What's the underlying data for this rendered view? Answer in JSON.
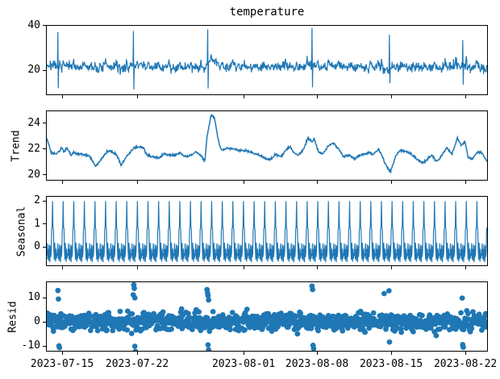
{
  "figure": {
    "background": "#ffffff",
    "line_color": "#1f77b4",
    "axis_color": "#000000",
    "text_color": "#000000"
  },
  "chart_data": {
    "type": "line",
    "title": "temperature",
    "subtitle": "",
    "legend": null,
    "grid": false,
    "x_axis": {
      "total_days": 41.5,
      "ticks": [
        {
          "day": 1.52,
          "label": "2023-07-15"
        },
        {
          "day": 8.56,
          "label": "2023-07-22"
        },
        {
          "day": 18.56,
          "label": "2023-08-01"
        },
        {
          "day": 25.45,
          "label": "2023-08-08"
        },
        {
          "day": 32.42,
          "label": "2023-08-15"
        },
        {
          "day": 39.39,
          "label": "2023-08-22"
        }
      ]
    },
    "panels": [
      {
        "name": "observed",
        "type": "line",
        "ylabel": "",
        "yticks": [
          20,
          40
        ],
        "ylim": [
          8.73,
          40.36
        ],
        "points_per_day": 24,
        "noise_sd": 1.1,
        "spikes": [
          {
            "day": 1.06,
            "high": 37.5,
            "low": 11.6
          },
          {
            "day": 8.15,
            "high": 38.0,
            "low": 11.0
          },
          {
            "day": 15.15,
            "high": 38.8,
            "low": 11.5
          },
          {
            "day": 25.0,
            "high": 39.4,
            "low": 12.0
          },
          {
            "day": 32.3,
            "high": 36.2,
            "low": 13.8
          },
          {
            "day": 39.2,
            "high": 33.8,
            "low": 13.2
          }
        ]
      },
      {
        "name": "trend",
        "type": "line",
        "ylabel": "Trend",
        "yticks": [
          20,
          22,
          24
        ],
        "ylim": [
          19.56,
          25.0
        ],
        "keypoints": [
          [
            0,
            22.9
          ],
          [
            0.4,
            21.7
          ],
          [
            0.9,
            21.6
          ],
          [
            1.4,
            22.1
          ],
          [
            1.6,
            21.8
          ],
          [
            1.9,
            22.1
          ],
          [
            2.3,
            21.5
          ],
          [
            2.5,
            21.7
          ],
          [
            3.3,
            21.6
          ],
          [
            4.1,
            21.4
          ],
          [
            4.6,
            20.6
          ],
          [
            5.2,
            21.3
          ],
          [
            5.7,
            21.8
          ],
          [
            6.0,
            21.9
          ],
          [
            6.7,
            21.4
          ],
          [
            7.0,
            20.7
          ],
          [
            7.5,
            21.4
          ],
          [
            8.2,
            22.1
          ],
          [
            8.7,
            22.2
          ],
          [
            9.1,
            22.1
          ],
          [
            9.4,
            21.6
          ],
          [
            9.8,
            21.4
          ],
          [
            10.6,
            21.3
          ],
          [
            11.0,
            21.6
          ],
          [
            12.1,
            21.5
          ],
          [
            12.6,
            21.7
          ],
          [
            13.0,
            21.4
          ],
          [
            13.6,
            21.5
          ],
          [
            14.1,
            21.8
          ],
          [
            14.6,
            21.4
          ],
          [
            14.9,
            21.0
          ],
          [
            15.1,
            23.0
          ],
          [
            15.5,
            24.7
          ],
          [
            15.8,
            24.5
          ],
          [
            16.0,
            23.5
          ],
          [
            16.3,
            22.2
          ],
          [
            16.5,
            21.9
          ],
          [
            17.1,
            22.1
          ],
          [
            17.7,
            22.0
          ],
          [
            18.2,
            21.9
          ],
          [
            18.7,
            21.9
          ],
          [
            19.2,
            21.8
          ],
          [
            19.7,
            21.6
          ],
          [
            20.4,
            21.4
          ],
          [
            21.0,
            21.1
          ],
          [
            21.6,
            21.6
          ],
          [
            22.1,
            21.4
          ],
          [
            22.4,
            21.8
          ],
          [
            22.9,
            22.2
          ],
          [
            23.3,
            21.7
          ],
          [
            23.7,
            21.5
          ],
          [
            24.2,
            22.0
          ],
          [
            24.6,
            22.9
          ],
          [
            25.0,
            22.6
          ],
          [
            25.2,
            22.8
          ],
          [
            25.6,
            21.8
          ],
          [
            26.0,
            21.6
          ],
          [
            26.5,
            22.2
          ],
          [
            27.0,
            22.5
          ],
          [
            27.5,
            22.0
          ],
          [
            28.0,
            21.4
          ],
          [
            28.5,
            21.5
          ],
          [
            29.0,
            21.2
          ],
          [
            29.5,
            21.5
          ],
          [
            30.3,
            21.7
          ],
          [
            30.8,
            21.6
          ],
          [
            31.3,
            22.0
          ],
          [
            31.8,
            21.0
          ],
          [
            32.2,
            20.4
          ],
          [
            32.4,
            20.2
          ],
          [
            32.9,
            21.5
          ],
          [
            33.3,
            21.9
          ],
          [
            33.9,
            21.8
          ],
          [
            34.4,
            21.6
          ],
          [
            34.9,
            21.2
          ],
          [
            35.5,
            20.9
          ],
          [
            36.0,
            21.3
          ],
          [
            36.3,
            21.5
          ],
          [
            36.8,
            21.0
          ],
          [
            37.3,
            21.6
          ],
          [
            37.7,
            22.1
          ],
          [
            38.2,
            21.6
          ],
          [
            38.7,
            22.9
          ],
          [
            39.1,
            22.3
          ],
          [
            39.4,
            22.6
          ],
          [
            39.7,
            21.4
          ],
          [
            40.1,
            21.2
          ],
          [
            40.6,
            21.8
          ],
          [
            41.1,
            21.6
          ],
          [
            41.5,
            21.0
          ]
        ]
      },
      {
        "name": "seasonal",
        "type": "line",
        "ylabel": "Seasonal",
        "yticks": [
          0,
          1,
          2
        ],
        "ylim": [
          -0.82,
          2.21
        ],
        "cycle": [
          -0.4,
          0.15,
          -0.55,
          -0.1,
          -0.62,
          0.1,
          -0.35,
          -0.68,
          0.05,
          -0.45,
          -0.25,
          0.78,
          0.85,
          2.02,
          0.85,
          0.78,
          -0.15,
          -0.58,
          0.18,
          -0.42,
          -0.66,
          -0.08,
          -0.52,
          -0.3
        ]
      },
      {
        "name": "resid",
        "type": "scatter",
        "ylabel": "Resid",
        "yticks": [
          -10,
          0,
          10
        ],
        "ylim": [
          -12.3,
          16.7
        ],
        "noise_sd": 1.9,
        "outliers": [
          [
            1.05,
            13.2
          ],
          [
            1.1,
            9.6
          ],
          [
            1.15,
            -10.2
          ],
          [
            1.2,
            -11.0
          ],
          [
            8.15,
            11.4
          ],
          [
            8.2,
            15.6
          ],
          [
            8.25,
            14.1
          ],
          [
            8.3,
            10.1
          ],
          [
            8.3,
            -10.4
          ],
          [
            8.35,
            -12.6
          ],
          [
            15.1,
            13.6
          ],
          [
            15.15,
            12.2
          ],
          [
            15.2,
            11.0
          ],
          [
            15.25,
            9.2
          ],
          [
            15.2,
            -9.8
          ],
          [
            15.25,
            -11.9
          ],
          [
            25.0,
            15.1
          ],
          [
            25.05,
            13.6
          ],
          [
            25.1,
            -10.0
          ],
          [
            25.15,
            -11.4
          ],
          [
            31.8,
            11.9
          ],
          [
            32.25,
            13.1
          ],
          [
            32.3,
            -8.6
          ],
          [
            39.15,
            10.0
          ],
          [
            39.2,
            -9.7
          ],
          [
            39.25,
            -10.8
          ]
        ]
      }
    ]
  }
}
